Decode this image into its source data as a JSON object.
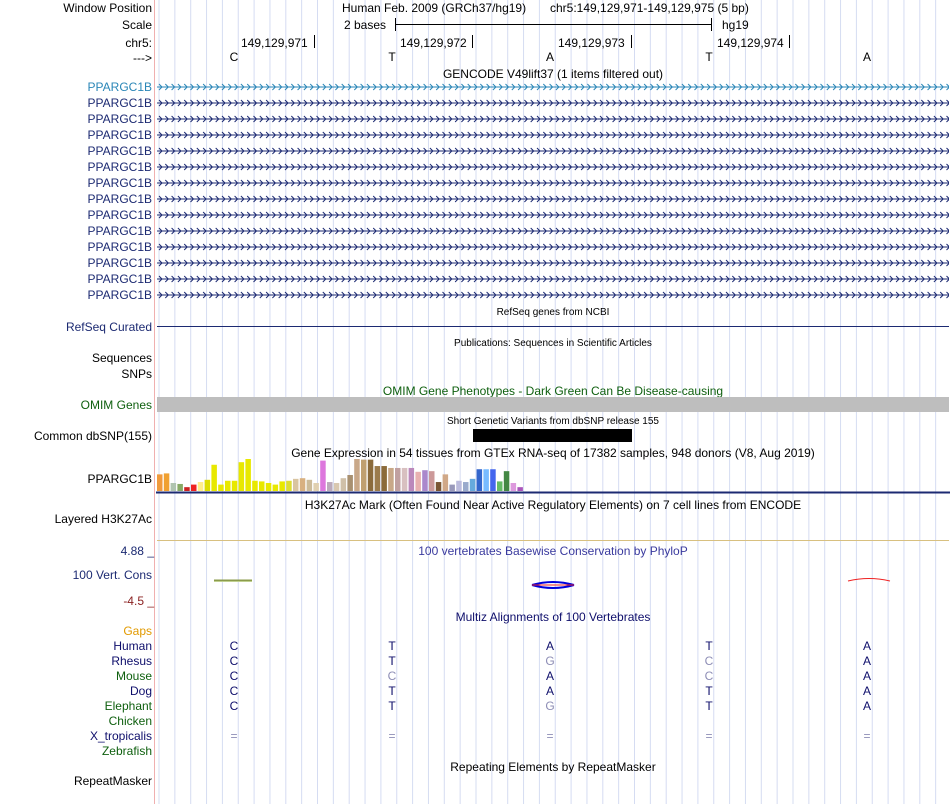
{
  "header": {
    "window_position_label": "Window Position",
    "scale_label": "Scale",
    "chr_label": "chr5:",
    "strand_label": "--->",
    "assembly": "Human Feb. 2009 (GRCh37/hg19)",
    "position": "chr5:149,129,971-149,129,975 (5 bp)",
    "scale_text": "2 bases",
    "db": "hg19",
    "coords": [
      "149,129,971",
      "149,129,972",
      "149,129,973",
      "149,129,974"
    ],
    "sequence": [
      "C",
      "T",
      "A",
      "T",
      "A"
    ]
  },
  "gencode": {
    "title": "GENCODE V49lift37 (1 items filtered out)",
    "items": [
      "PPARGC1B",
      "PPARGC1B",
      "PPARGC1B",
      "PPARGC1B",
      "PPARGC1B",
      "PPARGC1B",
      "PPARGC1B",
      "PPARGC1B",
      "PPARGC1B",
      "PPARGC1B",
      "PPARGC1B",
      "PPARGC1B",
      "PPARGC1B",
      "PPARGC1B"
    ]
  },
  "refseq": {
    "title": "RefSeq genes from NCBI",
    "label": "RefSeq Curated"
  },
  "pubs": {
    "title": "Publications: Sequences in Scientific Articles",
    "label1": "Sequences",
    "label2": "SNPs"
  },
  "omim": {
    "title": "OMIM Gene Phenotypes - Dark Green Can Be Disease-causing",
    "label": "OMIM Genes"
  },
  "dbsnp": {
    "title": "Short Genetic Variants from dbSNP release 155",
    "label": "Common dbSNP(155)"
  },
  "gtex": {
    "title": "Gene Expression in 54 tissues from GTEx RNA-seq of 17382 samples, 948 donors (V8, Aug 2019)",
    "label": "PPARGC1B",
    "bar_values": [
      0.52,
      0.55,
      0.25,
      0.22,
      0.12,
      0.2,
      0.28,
      0.35,
      0.82,
      0.2,
      0.32,
      0.32,
      0.9,
      1.0,
      0.32,
      0.3,
      0.25,
      0.2,
      0.3,
      0.32,
      0.38,
      0.4,
      0.35,
      0.25,
      0.95,
      0.28,
      0.25,
      0.4,
      0.5,
      1.0,
      0.98,
      0.98,
      0.78,
      0.78,
      0.72,
      0.72,
      0.72,
      0.72,
      0.6,
      0.65,
      0.62,
      0.28,
      0.52,
      0.2,
      0.32,
      0.28,
      0.38,
      0.68,
      0.68,
      0.68,
      0.3,
      0.62,
      0.25,
      0.12
    ],
    "bar_colors": [
      "#f09a3c",
      "#f0a030",
      "#b0c4b0",
      "#88aa66",
      "#cc2222",
      "#ee2222",
      "#ffee88",
      "#dddd00",
      "#e8e800",
      "#e8e800",
      "#e8e800",
      "#e8e800",
      "#e8e800",
      "#e8e800",
      "#e8e800",
      "#e8e800",
      "#e8e800",
      "#e8e800",
      "#e8e800",
      "#dddd33",
      "#d9c4a0",
      "#d8b080",
      "#ccbb99",
      "#e0d0b0",
      "#dd77dd",
      "#bbaabb",
      "#d9c8b0",
      "#d0c0a8",
      "#a89070",
      "#c9a888",
      "#c0a070",
      "#8b6b3b",
      "#9b7b4b",
      "#8b6b3b",
      "#c8a888",
      "#c0a0a0",
      "#d8c0c0",
      "#bb88bb",
      "#e8b0b0",
      "#aa88cc",
      "#cc9999",
      "#7a5533",
      "#d0a888",
      "#9999bb",
      "#bbbbdd",
      "#99aacc",
      "#66aadd",
      "#3366cc",
      "#77bbff",
      "#4466ee",
      "#66bb66",
      "#448844",
      "#dd99dd",
      "#aa55bb"
    ]
  },
  "h3k27ac": {
    "title": "H3K27Ac Mark (Often Found Near Active Regulatory Elements) on 7 cell lines from ENCODE",
    "label": "Layered H3K27Ac"
  },
  "phylop": {
    "title": "100 vertebrates Basewise Conservation by PhyloP",
    "label": "100 Vert. Cons",
    "max": "4.88 _",
    "min": "-4.5 _"
  },
  "multiz": {
    "title": "Multiz Alignments of 100 Vertebrates",
    "gaps_label": "Gaps",
    "rows": [
      {
        "species": "Human",
        "bases": [
          "C",
          "T",
          "A",
          "T",
          "A"
        ]
      },
      {
        "species": "Rhesus",
        "bases": [
          "C",
          "T",
          "G",
          "C",
          "A"
        ]
      },
      {
        "species": "Mouse",
        "bases": [
          "C",
          "C",
          "A",
          "C",
          "A"
        ]
      },
      {
        "species": "Dog",
        "bases": [
          "C",
          "T",
          "A",
          "T",
          "A"
        ]
      },
      {
        "species": "Elephant",
        "bases": [
          "C",
          "T",
          "G",
          "T",
          "A"
        ]
      },
      {
        "species": "Chicken",
        "bases": [
          "",
          "",
          "",
          "",
          ""
        ]
      },
      {
        "species": "X_tropicalis",
        "bases": [
          "=",
          "=",
          "=",
          "=",
          "="
        ]
      },
      {
        "species": "Zebrafish",
        "bases": [
          "",
          "",
          "",
          "",
          ""
        ]
      }
    ]
  },
  "repeatmasker": {
    "title": "Repeating Elements by RepeatMasker",
    "label": "RepeatMasker"
  },
  "colors": {
    "navy": "#0e0e6b",
    "green": "#0e5f0e",
    "gencode_blue": "#1c2a72",
    "selected": "#2a86b7",
    "orange": "#e29a00"
  }
}
